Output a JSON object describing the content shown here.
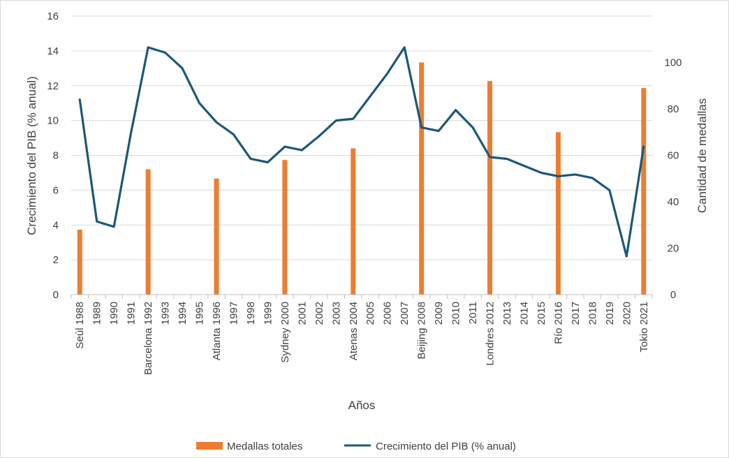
{
  "chart_data": {
    "type": "bar+line",
    "title": "",
    "xlabel": "Años",
    "ylabel_left": "Crecimiento del PIB (% anual)",
    "ylabel_right": "Cantidad de medallas",
    "ylim_left": [
      0,
      16
    ],
    "yticks_left": [
      0,
      2,
      4,
      6,
      8,
      10,
      12,
      14,
      16
    ],
    "ylim_right": [
      0,
      120
    ],
    "yticks_right": [
      0,
      20,
      40,
      60,
      80,
      100
    ],
    "grid": true,
    "legend_position": "bottom",
    "categories": [
      "Seúl 1988",
      "1989",
      "1990",
      "1991",
      "Barcelona 1992",
      "1993",
      "1994",
      "1995",
      "Atlanta 1996",
      "1997",
      "1998",
      "1999",
      "Sydney 2000",
      "2001",
      "2002",
      "2003",
      "Atenas 2004",
      "2005",
      "2006",
      "2007",
      "Beijing 2008",
      "2009",
      "2010",
      "2011",
      "Londres 2012",
      "2013",
      "2014",
      "2015",
      "Río 2016",
      "2017",
      "2018",
      "2019",
      "2020",
      "Tokio 2021"
    ],
    "series": [
      {
        "name": "Medallas totales",
        "type": "bar",
        "axis": "right",
        "color": "#ed7d31",
        "values": [
          28,
          null,
          null,
          null,
          54,
          null,
          null,
          null,
          50,
          null,
          null,
          null,
          58,
          null,
          null,
          null,
          63,
          null,
          null,
          null,
          100,
          null,
          null,
          null,
          92,
          null,
          null,
          null,
          70,
          null,
          null,
          null,
          null,
          89
        ]
      },
      {
        "name": "Crecimiento del PIB (% anual)",
        "type": "line",
        "axis": "left",
        "color": "#1b5876",
        "values": [
          11.2,
          4.2,
          3.9,
          9.3,
          14.2,
          13.9,
          13.0,
          11.0,
          9.9,
          9.2,
          7.8,
          7.6,
          8.5,
          8.3,
          9.1,
          10.0,
          10.1,
          11.4,
          12.7,
          14.2,
          9.6,
          9.4,
          10.6,
          9.6,
          7.9,
          7.8,
          7.4,
          7.0,
          6.8,
          6.9,
          6.7,
          6.0,
          2.2,
          8.5
        ]
      }
    ]
  }
}
